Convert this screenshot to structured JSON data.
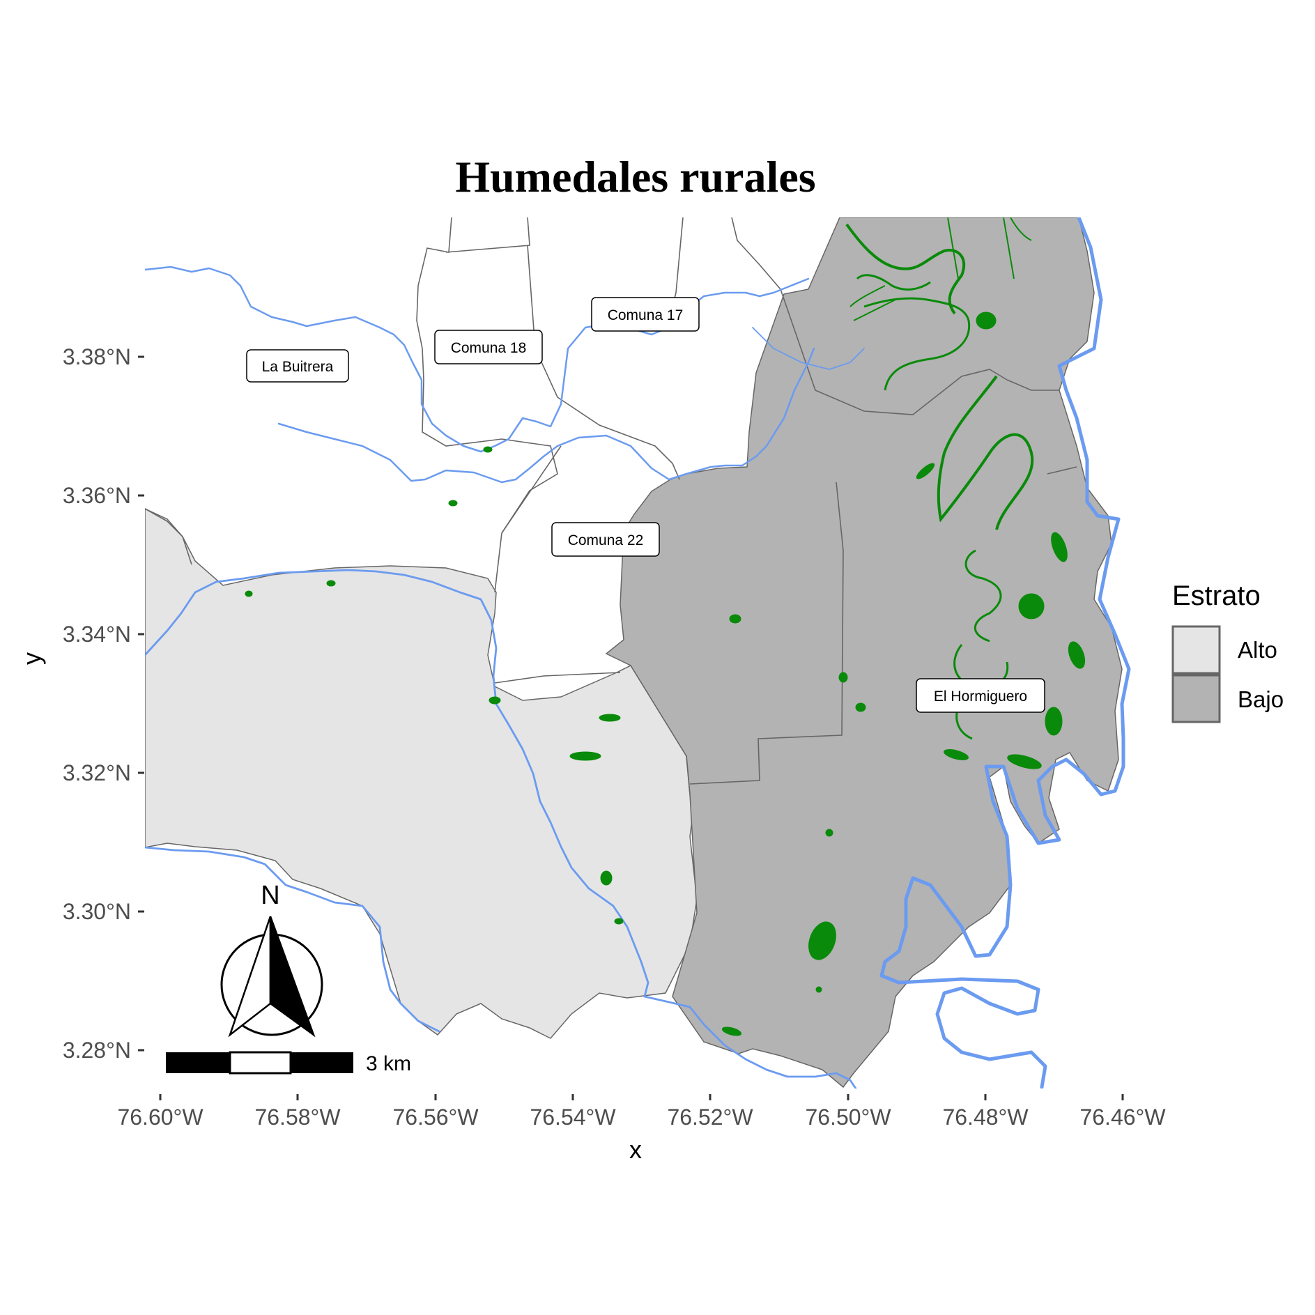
{
  "title": "Humedales rurales",
  "axes": {
    "x_label": "x",
    "y_label": "y",
    "x_ticks": [
      "76.60°W",
      "76.58°W",
      "76.56°W",
      "76.54°W",
      "76.52°W",
      "76.50°W",
      "76.48°W",
      "76.46°W"
    ],
    "y_ticks": [
      "3.38°N",
      "3.36°N",
      "3.34°N",
      "3.32°N",
      "3.30°N",
      "3.28°N"
    ]
  },
  "places": [
    "La Buitrera",
    "Comuna 18",
    "Comuna 17",
    "Comuna 22",
    "El Hormiguero"
  ],
  "legend": {
    "title": "Estrato",
    "items": [
      {
        "label": "Alto",
        "color": "#e5e5e5"
      },
      {
        "label": "Bajo",
        "color": "#b3b3b3"
      }
    ]
  },
  "north_arrow": {
    "label": "N"
  },
  "scale_bar": {
    "label": "3 km"
  },
  "colors": {
    "river": "#6b9bf0",
    "wetland": "#0a8a0a",
    "boundary": "#666666",
    "alto": "#e5e5e5",
    "bajo": "#b3b3b3"
  }
}
